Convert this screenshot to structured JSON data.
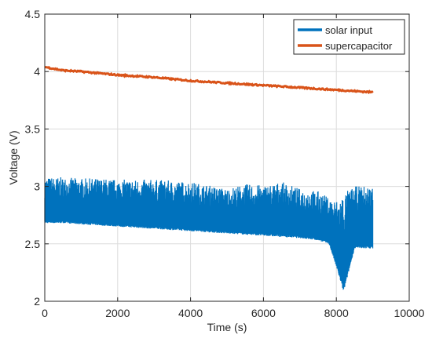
{
  "chart_data": {
    "type": "line",
    "title": "",
    "xlabel": "Time (s)",
    "ylabel": "Voltage (V)",
    "xlim": [
      0,
      10000
    ],
    "ylim": [
      2,
      4.5
    ],
    "x_ticks": [
      "0",
      "2000",
      "4000",
      "6000",
      "8000",
      "10000"
    ],
    "y_ticks": [
      "2",
      "2.5",
      "3",
      "3.5",
      "4",
      "4.5"
    ],
    "grid": true,
    "legend_position": "top-right",
    "series": [
      {
        "name": "solar input",
        "color": "#0072BD",
        "style": "dense oscillation between a lower envelope and upper envelope",
        "x": [
          0,
          500,
          1000,
          1500,
          2000,
          2500,
          3000,
          3500,
          4000,
          4500,
          5000,
          5500,
          6000,
          6500,
          7000,
          7500,
          7800,
          8000,
          8200,
          8500,
          9000
        ],
        "lower_envelope": [
          2.68,
          2.68,
          2.67,
          2.66,
          2.65,
          2.64,
          2.63,
          2.62,
          2.61,
          2.6,
          2.59,
          2.58,
          2.57,
          2.56,
          2.55,
          2.53,
          2.5,
          2.3,
          2.08,
          2.46,
          2.46
        ],
        "upper_envelope": [
          3.08,
          3.08,
          3.07,
          3.07,
          3.06,
          3.06,
          3.06,
          3.05,
          3.04,
          3.01,
          2.98,
          3.02,
          3.01,
          3.04,
          2.98,
          2.96,
          2.9,
          2.88,
          2.95,
          3.0,
          3.01
        ]
      },
      {
        "name": "supercapacitor",
        "color": "#D95319",
        "x": [
          0,
          500,
          1000,
          2000,
          3000,
          4000,
          5000,
          6000,
          7000,
          8000,
          9000
        ],
        "values": [
          4.04,
          4.01,
          4.0,
          3.97,
          3.95,
          3.92,
          3.9,
          3.88,
          3.86,
          3.84,
          3.82
        ]
      }
    ]
  }
}
